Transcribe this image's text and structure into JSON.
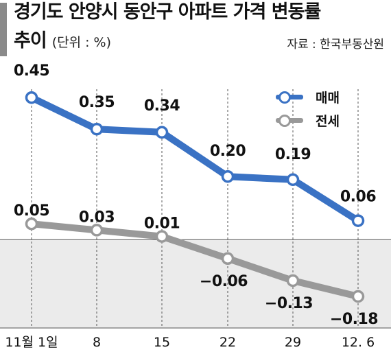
{
  "header": {
    "title_line1": "경기도 안양시 동안구 아파트 가격 변동률",
    "title_line2": "추이",
    "unit": "(단위 : %)",
    "source": "자료 : 한국부동산원"
  },
  "colors": {
    "sale": "#3a72c4",
    "jeonse": "#999999",
    "negative_band": "#ebebeb",
    "title_bar": "#8a8a8a"
  },
  "chart_data": {
    "type": "line",
    "categories": [
      "11월 1일",
      "8",
      "15",
      "22",
      "29",
      "12. 6"
    ],
    "series": [
      {
        "name": "매매",
        "values": [
          0.45,
          0.35,
          0.34,
          0.2,
          0.19,
          0.06
        ],
        "labels": [
          "0.45",
          "0.35",
          "0.34",
          "0.20",
          "0.19",
          "0.06"
        ]
      },
      {
        "name": "전세",
        "values": [
          0.05,
          0.03,
          0.01,
          -0.06,
          -0.13,
          -0.18
        ],
        "labels": [
          "0.05",
          "0.03",
          "0.01",
          "−0.06",
          "−0.13",
          "−0.18"
        ]
      }
    ],
    "title": "경기도 안양시 동안구 아파트 가격 변동률 추이",
    "xlabel": "",
    "ylabel": "",
    "ylim": [
      -0.28,
      0.52
    ],
    "grid": "vertical dashed lines at each category",
    "legend": "top-right"
  }
}
